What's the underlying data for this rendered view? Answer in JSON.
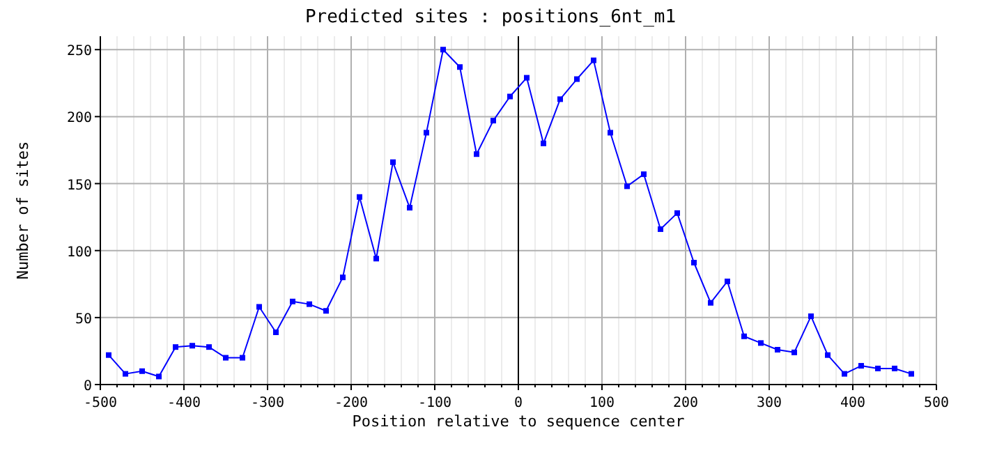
{
  "chart_data": {
    "type": "line",
    "title": "Predicted sites : positions_6nt_m1",
    "xlabel": "Position relative to sequence center",
    "ylabel": "Number of sites",
    "x": [
      -490,
      -470,
      -450,
      -430,
      -410,
      -390,
      -370,
      -350,
      -330,
      -310,
      -290,
      -270,
      -250,
      -230,
      -210,
      -190,
      -170,
      -150,
      -130,
      -110,
      -90,
      -70,
      -50,
      -30,
      -10,
      10,
      30,
      50,
      70,
      90,
      110,
      130,
      150,
      170,
      190,
      210,
      230,
      250,
      270,
      290,
      310,
      330,
      350,
      370,
      390,
      410,
      430,
      450,
      470
    ],
    "series": [
      {
        "color": "#0000ff",
        "values": [
          22,
          8,
          10,
          6,
          28,
          29,
          28,
          20,
          20,
          58,
          39,
          62,
          60,
          55,
          80,
          140,
          94,
          166,
          132,
          188,
          250,
          237,
          172,
          197,
          215,
          229,
          180,
          213,
          228,
          242,
          188,
          148,
          157,
          116,
          128,
          91,
          61,
          77,
          36,
          31,
          26,
          24,
          51,
          22,
          8,
          14,
          12,
          12,
          8
        ]
      }
    ],
    "xlim": [
      -500,
      500
    ],
    "xticks": [
      -500,
      {
        "value": -480,
        "label": null
      },
      {
        "value": -460,
        "label": null
      },
      {
        "value": -440,
        "label": null
      },
      {
        "value": -420,
        "label": null
      },
      -400,
      {
        "value": -380,
        "label": null
      },
      {
        "value": -360,
        "label": null
      },
      {
        "value": -340,
        "label": null
      },
      {
        "value": -320,
        "label": null
      },
      -300,
      {
        "value": -280,
        "label": null
      },
      {
        "value": -260,
        "label": null
      },
      {
        "value": -240,
        "label": null
      },
      {
        "value": -220,
        "label": null
      },
      -200,
      {
        "value": -180,
        "label": null
      },
      {
        "value": -160,
        "label": null
      },
      {
        "value": -140,
        "label": null
      },
      {
        "value": -120,
        "label": null
      },
      -100,
      {
        "value": -80,
        "label": null
      },
      {
        "value": -60,
        "label": null
      },
      {
        "value": -40,
        "label": null
      },
      {
        "value": -20,
        "label": null
      },
      0,
      {
        "value": 20,
        "label": null
      },
      {
        "value": 40,
        "label": null
      },
      {
        "value": 60,
        "label": null
      },
      {
        "value": 80,
        "label": null
      },
      100,
      {
        "value": 120,
        "label": null
      },
      {
        "value": 140,
        "label": null
      },
      {
        "value": 160,
        "label": null
      },
      {
        "value": 180,
        "label": null
      },
      200,
      {
        "value": 220,
        "label": null
      },
      {
        "value": 240,
        "label": null
      },
      {
        "value": 260,
        "label": null
      },
      {
        "value": 280,
        "label": null
      },
      300,
      {
        "value": 320,
        "label": null
      },
      {
        "value": 340,
        "label": null
      },
      {
        "value": 360,
        "label": null
      },
      {
        "value": 380,
        "label": null
      },
      400,
      {
        "value": 420,
        "label": null
      },
      {
        "value": 440,
        "label": null
      },
      {
        "value": 460,
        "label": null
      },
      {
        "value": 480,
        "label": null
      },
      500
    ],
    "ylim": [
      0,
      260
    ],
    "yticks": [
      0,
      50,
      100,
      150,
      200,
      250
    ],
    "grid": true,
    "marker": "square",
    "line_style": "solid",
    "ref_lines": [
      {
        "axis": "x",
        "value": 0,
        "color": "#000000"
      }
    ]
  }
}
